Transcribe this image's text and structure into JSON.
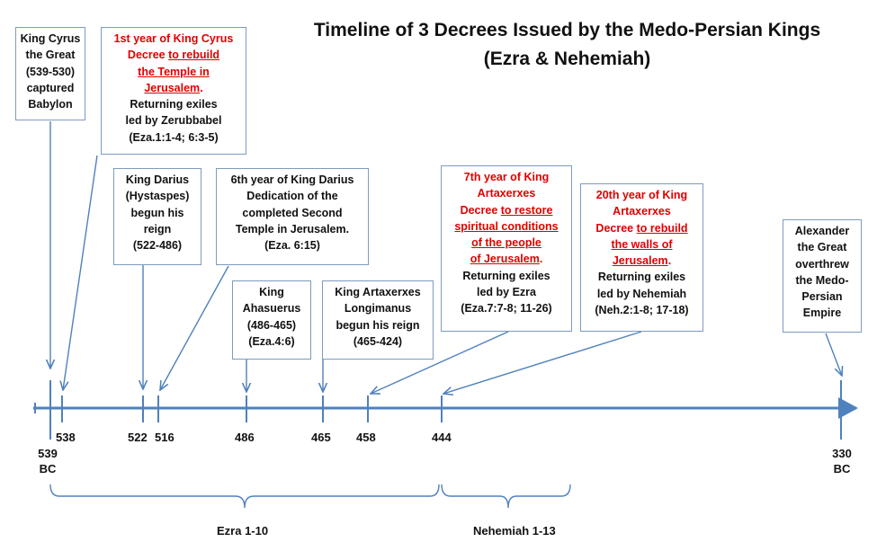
{
  "title": {
    "line1": "Timeline of 3 Decrees Issued by the Medo-Persian Kings",
    "line2": "(Ezra & Nehemiah)"
  },
  "colors": {
    "axis": "#4f81bd",
    "arrow": "#4f81bd",
    "box_border": "#7d9bc1",
    "decree": "#e00000"
  },
  "boxes": {
    "cyrus": {
      "l1": "King Cyrus",
      "l2": "the Great",
      "l3": "(539-530)",
      "l4": "captured",
      "l5": "Babylon"
    },
    "decree1": {
      "l1": "1st year of King Cyrus",
      "l2a": "Decree ",
      "l2b": "to rebuild",
      "l3": "the Temple in",
      "l4": "Jerusalem",
      "l5": "Returning exiles",
      "l6": "led by Zerubbabel",
      "l7": "(Eza.1:1-4; 6:3-5)"
    },
    "darius": {
      "l1": "King Darius",
      "l2": "(Hystaspes)",
      "l3": "begun his",
      "l4": "reign",
      "l5": "(522-486)"
    },
    "dedication": {
      "l1": "6th year of King Darius",
      "l2": "Dedication of the",
      "l3": "completed Second",
      "l4": "Temple in Jerusalem.",
      "l5": "(Eza. 6:15)"
    },
    "ahasuerus": {
      "l1": "King",
      "l2": "Ahasuerus",
      "l3": "(486-465)",
      "l4": "(Eza.4:6)"
    },
    "artaxerxes": {
      "l1": "King Artaxerxes",
      "l2": "Longimanus",
      "l3": "begun his reign",
      "l4": "(465-424)"
    },
    "decree2": {
      "l1": "7th year of King",
      "l2": "Artaxerxes",
      "l3a": "Decree ",
      "l3b": "to restore",
      "l4": "spiritual conditions",
      "l5": "of the people",
      "l6": "of Jerusalem",
      "l7": "Returning exiles",
      "l8": "led by Ezra",
      "l9": "(Eza.7:7-8; 11-26)"
    },
    "decree3": {
      "l1": "20th year of King",
      "l2": "Artaxerxes",
      "l3a": "Decree ",
      "l3b": "to rebuild",
      "l4": "the walls of",
      "l5": "Jerusalem",
      "l6": "Returning exiles",
      "l7": "led by Nehemiah",
      "l8": "(Neh.2:1-8; 17-18)"
    },
    "alexander": {
      "l1": "Alexander",
      "l2": "the Great",
      "l3": "overthrew",
      "l4": "the Medo-",
      "l5": "Persian",
      "l6": "Empire"
    }
  },
  "ticks": {
    "t539": "539",
    "t539bc": "BC",
    "t538": "538",
    "t522": "522",
    "t516": "516",
    "t486": "486",
    "t465": "465",
    "t458": "458",
    "t444": "444",
    "t330": "330",
    "t330bc": "BC"
  },
  "spans": {
    "ezra": "Ezra 1-10",
    "nehemiah": "Nehemiah 1-13"
  }
}
